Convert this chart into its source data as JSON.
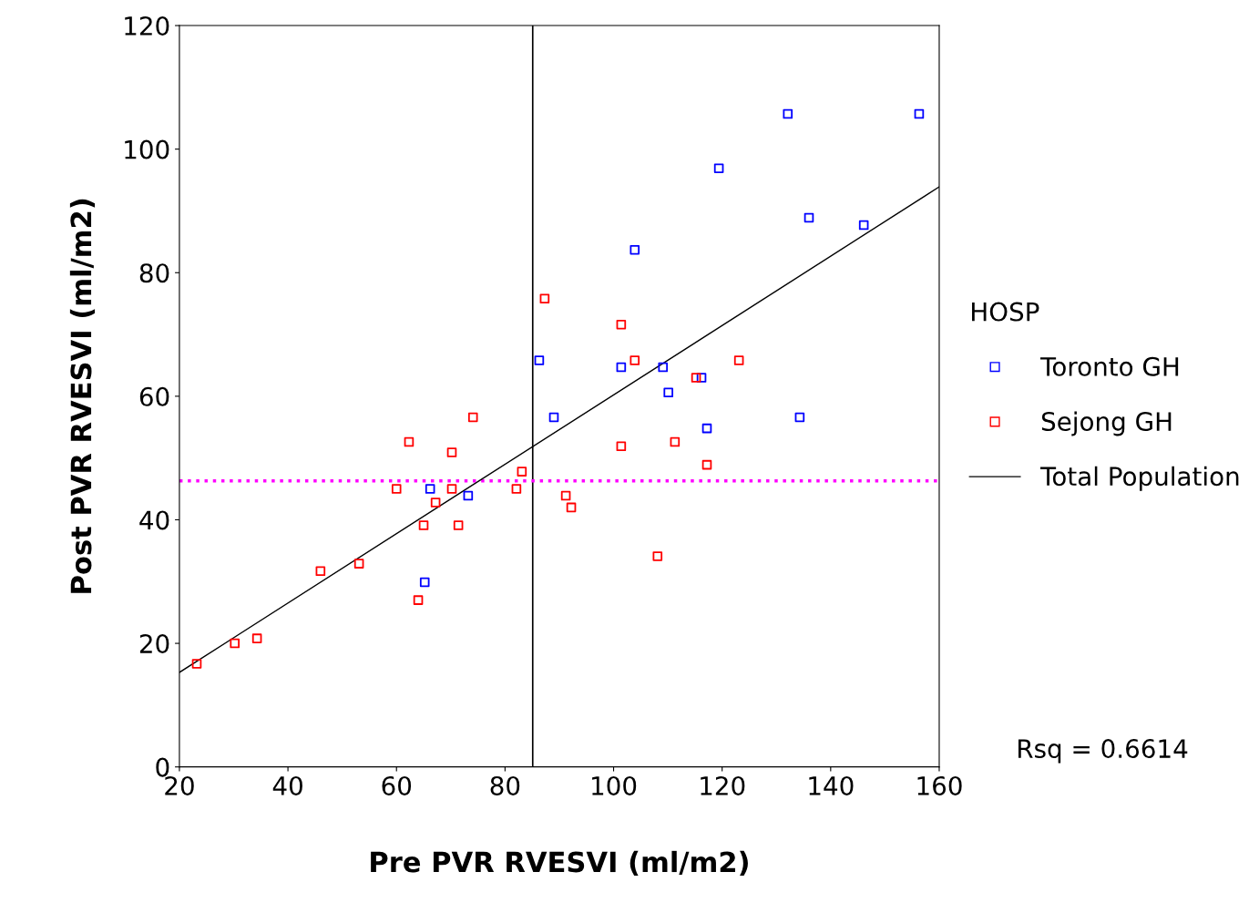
{
  "chart_data": {
    "type": "scatter",
    "xlabel": "Pre PVR RVESVI (ml/m2)",
    "ylabel": "Post PVR RVESVI (ml/m2)",
    "legend_title": "HOSP",
    "legend": "right",
    "marker": "square",
    "grid": false,
    "xlim": [
      20,
      160
    ],
    "xticks": [
      20,
      40,
      60,
      80,
      100,
      120,
      140,
      160
    ],
    "ylim": [
      0,
      120
    ],
    "yticks": [
      0,
      20,
      40,
      60,
      80,
      100,
      120
    ],
    "series": [
      {
        "name": "Toronto GH",
        "color": "#0000ff",
        "x": [
          132.1,
          156.3,
          119.4,
          136,
          146.1,
          103.9,
          86.3,
          101.4,
          109.1,
          116.2,
          110.1,
          89,
          117.2,
          134.3,
          66.2,
          73.2,
          65.2
        ],
        "values": [
          105.7,
          105.7,
          96.9,
          88.9,
          87.7,
          83.7,
          65.8,
          64.7,
          64.7,
          63,
          60.6,
          56.6,
          54.8,
          56.6,
          45,
          43.9,
          29.9
        ]
      },
      {
        "name": "Sejong GH",
        "color": "#ff0000",
        "x": [
          23.2,
          30.2,
          34.3,
          46,
          53.1,
          60,
          62.3,
          64,
          65,
          67.2,
          70.2,
          70.2,
          71.4,
          74.1,
          82.1,
          83.1,
          87.3,
          91.2,
          92.2,
          101.4,
          101.4,
          103.9,
          108.1,
          111.3,
          115.2,
          117.2,
          123.1
        ],
        "values": [
          16.7,
          20,
          20.8,
          31.7,
          32.9,
          45,
          52.6,
          27,
          39.1,
          42.8,
          50.9,
          45,
          39.1,
          56.6,
          45,
          47.8,
          75.8,
          43.9,
          42,
          71.6,
          51.9,
          65.8,
          34.1,
          52.6,
          63,
          48.9,
          65.8
        ]
      },
      {
        "name": "Total Population",
        "type": "line",
        "color": "#000000",
        "marker": "none",
        "line_style": "solid",
        "x": [
          20,
          160
        ],
        "values": [
          15.3,
          93.9
        ]
      }
    ],
    "ref_lines": [
      {
        "axis": "x",
        "value": 85.1,
        "color": "#000000",
        "line_style": "solid"
      },
      {
        "axis": "y",
        "value": 46.3,
        "color": "#ff00ff",
        "line_style": "dotted"
      }
    ],
    "annotations": [
      "Rsq = 0.6614"
    ]
  }
}
